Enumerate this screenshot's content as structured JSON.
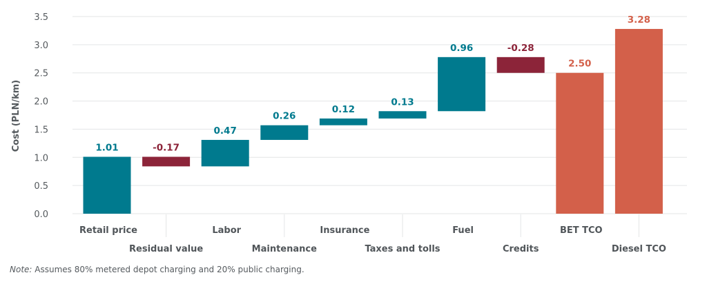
{
  "chart_data": {
    "type": "bar",
    "subtype": "waterfall",
    "title": "",
    "xlabel": "",
    "ylabel": "Cost (PLN/km)",
    "ylim": [
      0,
      3.5
    ],
    "yticks": [
      "0.0",
      "0.5",
      "1.0",
      "1.5",
      "2.0",
      "2.5",
      "3.0",
      "3.5"
    ],
    "grid": true,
    "categories": [
      "Retail price",
      "Residual value",
      "Labor",
      "Maintenance",
      "Insurance",
      "Taxes and tolls",
      "Fuel",
      "Credits",
      "BET TCO",
      "Diesel TCO"
    ],
    "values": [
      1.01,
      -0.17,
      0.47,
      0.26,
      0.12,
      0.13,
      0.96,
      -0.28,
      2.5,
      3.28
    ],
    "labels": [
      "1.01",
      "-0.17",
      "0.47",
      "0.26",
      "0.12",
      "0.13",
      "0.96",
      "-0.28",
      "2.50",
      "3.28"
    ],
    "bar_start": [
      0,
      1.01,
      0.84,
      1.31,
      1.57,
      1.69,
      1.82,
      2.78,
      0,
      0
    ],
    "bar_end": [
      1.01,
      0.84,
      1.31,
      1.57,
      1.69,
      1.82,
      2.78,
      2.5,
      2.5,
      3.28
    ],
    "kinds": [
      "increase",
      "decrease",
      "increase",
      "increase",
      "increase",
      "increase",
      "increase",
      "decrease",
      "total",
      "total"
    ],
    "colors": {
      "increase": "#007a8e",
      "decrease": "#8c2439",
      "total": "#d3604a",
      "grid": "#e3e5e6"
    }
  },
  "note": {
    "prefix": "Note:",
    "text": " Assumes 80% metered depot charging and 20% public charging."
  }
}
